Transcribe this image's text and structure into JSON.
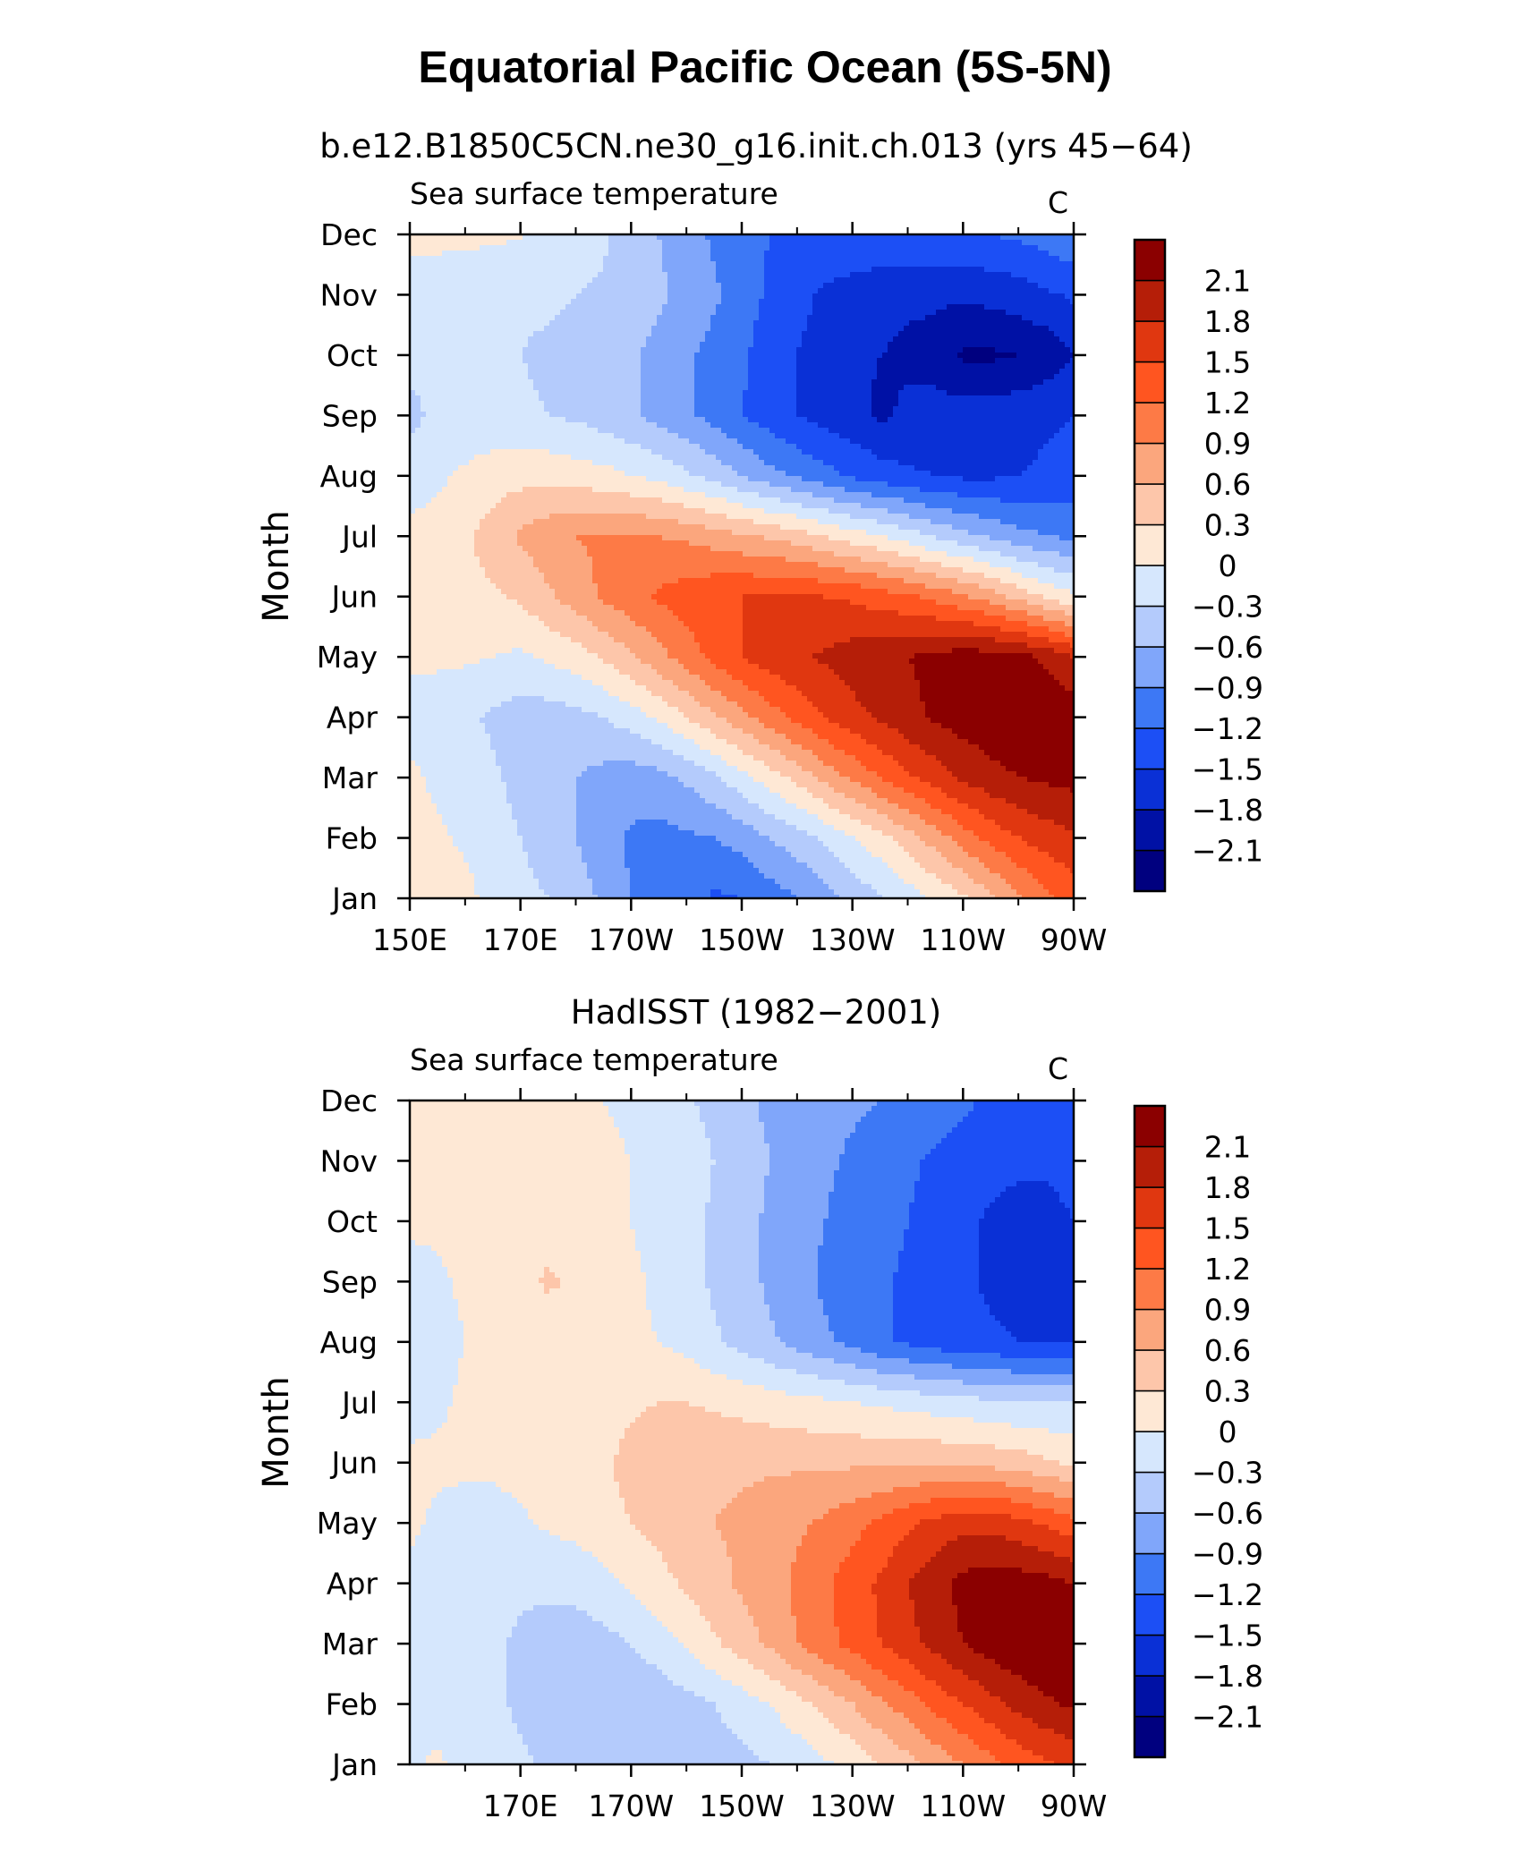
{
  "figure": {
    "title": "Equatorial Pacific Ocean (5S-5N)"
  },
  "colorbar": {
    "colors": [
      "#00007f",
      "#0011a5",
      "#0a30d6",
      "#1c4ff5",
      "#3d78f5",
      "#80a6fa",
      "#b4cbfc",
      "#d6e7fd",
      "#fee8d5",
      "#fdc6aa",
      "#fba67d",
      "#fd7a46",
      "#ff5520",
      "#e03710",
      "#b51e08",
      "#8b0000"
    ],
    "labels": [
      "-2.1",
      "-1.8",
      "-1.5",
      "-1.2",
      "-0.9",
      "-0.6",
      "-0.3",
      "0",
      "0.3",
      "0.6",
      "0.9",
      "1.2",
      "1.5",
      "1.8",
      "2.1"
    ],
    "label_text": [
      "−2.1",
      "−1.8",
      "−1.5",
      "−1.2",
      "−0.9",
      "−0.6",
      "−0.3",
      "0",
      "0.3",
      "0.6",
      "0.9",
      "1.2",
      "1.5",
      "1.8",
      "2.1"
    ]
  },
  "chart_data": [
    {
      "type": "heatmap",
      "panel": "top",
      "title": "b.e12.B1850C5CN.ne30_g16.init.ch.013 (yrs 45−64)",
      "left_string": "Sea surface temperature",
      "right_string": "C",
      "ylabel": "Month",
      "xlabel": "",
      "x_tick_labels": [
        "150E",
        "170E",
        "170W",
        "150W",
        "130W",
        "110W",
        "90W"
      ],
      "x_tick_lon": [
        150,
        170,
        190,
        210,
        230,
        250,
        270
      ],
      "xlim": [
        150,
        270
      ],
      "y_tick_labels": [
        "Jan",
        "Feb",
        "Mar",
        "Apr",
        "May",
        "Jun",
        "Jul",
        "Aug",
        "Sep",
        "Oct",
        "Nov",
        "Dec"
      ],
      "x": [
        150,
        155,
        160,
        165,
        170,
        175,
        180,
        185,
        190,
        195,
        200,
        205,
        210,
        215,
        220,
        225,
        230,
        235,
        240,
        245,
        250,
        255,
        260,
        265,
        270
      ],
      "y": [
        "Jan",
        "Feb",
        "Mar",
        "Apr",
        "May",
        "Jun",
        "Jul",
        "Aug",
        "Sep",
        "Oct",
        "Nov",
        "Dec"
      ],
      "values": [
        [
          0.15,
          0.12,
          0.1,
          -0.12,
          -0.2,
          -0.3,
          -0.45,
          -0.65,
          -0.9,
          -1.0,
          -1.05,
          -1.25,
          -1.2,
          -1.05,
          -0.9,
          -0.7,
          -0.5,
          -0.35,
          -0.15,
          0.05,
          0.25,
          0.55,
          0.85,
          1.1,
          1.35
        ],
        [
          0.1,
          0.05,
          -0.05,
          -0.15,
          -0.3,
          -0.45,
          -0.6,
          -0.8,
          -0.95,
          -1.0,
          -0.95,
          -0.9,
          -0.8,
          -0.6,
          -0.45,
          -0.25,
          0.0,
          0.2,
          0.45,
          0.75,
          1.05,
          1.3,
          1.5,
          1.65,
          1.75
        ],
        [
          0.05,
          -0.05,
          -0.15,
          -0.25,
          -0.4,
          -0.5,
          -0.6,
          -0.7,
          -0.75,
          -0.7,
          -0.55,
          -0.35,
          -0.1,
          0.15,
          0.4,
          0.7,
          0.95,
          1.2,
          1.45,
          1.65,
          1.85,
          2.0,
          2.1,
          2.15,
          2.2
        ],
        [
          -0.1,
          -0.15,
          -0.25,
          -0.35,
          -0.45,
          -0.45,
          -0.4,
          -0.3,
          -0.15,
          0.05,
          0.3,
          0.55,
          0.8,
          1.05,
          1.3,
          1.5,
          1.7,
          1.85,
          2.0,
          2.15,
          2.25,
          2.3,
          2.35,
          2.35,
          2.3
        ],
        [
          0.05,
          0.05,
          0.05,
          0.0,
          -0.05,
          0.05,
          0.15,
          0.35,
          0.55,
          0.8,
          1.05,
          1.3,
          1.5,
          1.65,
          1.75,
          1.85,
          1.95,
          2.0,
          2.1,
          2.2,
          2.25,
          2.25,
          2.2,
          2.05,
          1.8
        ],
        [
          0.1,
          0.15,
          0.2,
          0.25,
          0.35,
          0.55,
          0.75,
          0.95,
          1.1,
          1.25,
          1.35,
          1.45,
          1.5,
          1.55,
          1.55,
          1.5,
          1.45,
          1.35,
          1.25,
          1.1,
          0.95,
          0.75,
          0.5,
          0.25,
          0.05
        ],
        [
          0.05,
          0.1,
          0.25,
          0.45,
          0.65,
          0.8,
          0.9,
          0.95,
          0.95,
          0.9,
          0.85,
          0.75,
          0.65,
          0.55,
          0.45,
          0.3,
          0.15,
          0.0,
          -0.15,
          -0.35,
          -0.5,
          -0.65,
          -0.8,
          -0.9,
          -0.95
        ],
        [
          -0.1,
          -0.05,
          0.05,
          0.15,
          0.2,
          0.2,
          0.15,
          0.1,
          0.0,
          -0.1,
          -0.25,
          -0.4,
          -0.6,
          -0.8,
          -0.95,
          -1.1,
          -1.25,
          -1.35,
          -1.45,
          -1.5,
          -1.55,
          -1.55,
          -1.5,
          -1.45,
          -1.4
        ],
        [
          -0.4,
          -0.2,
          -0.2,
          -0.2,
          -0.25,
          -0.3,
          -0.35,
          -0.45,
          -0.55,
          -0.7,
          -0.85,
          -1.0,
          -1.2,
          -1.35,
          -1.5,
          -1.6,
          -1.7,
          -1.85,
          -1.75,
          -1.7,
          -1.65,
          -1.65,
          -1.6,
          -1.55,
          -1.5
        ],
        [
          -0.2,
          -0.2,
          -0.25,
          -0.3,
          -0.3,
          -0.35,
          -0.4,
          -0.45,
          -0.55,
          -0.7,
          -0.85,
          -1.0,
          -1.15,
          -1.35,
          -1.5,
          -1.65,
          -1.75,
          -1.8,
          -1.85,
          -1.9,
          -2.15,
          -2.15,
          -2.1,
          -2.0,
          -1.8
        ],
        [
          -0.1,
          -0.1,
          -0.15,
          -0.2,
          -0.25,
          -0.25,
          -0.3,
          -0.35,
          -0.45,
          -0.55,
          -0.7,
          -0.85,
          -1.05,
          -1.25,
          -1.4,
          -1.55,
          -1.6,
          -1.7,
          -1.75,
          -1.75,
          -1.75,
          -1.7,
          -1.65,
          -1.55,
          -1.45
        ],
        [
          0.05,
          0.05,
          0.05,
          0.05,
          0.02,
          -0.05,
          -0.1,
          -0.25,
          -0.45,
          -0.6,
          -0.75,
          -0.95,
          -1.1,
          -1.2,
          -1.25,
          -1.3,
          -1.3,
          -1.25,
          -1.2,
          -1.25,
          -1.25,
          -1.2,
          -1.15,
          -1.05,
          -0.95
        ]
      ]
    },
    {
      "type": "heatmap",
      "panel": "bottom",
      "title": "HadISST (1982−2001)",
      "left_string": "Sea surface temperature",
      "right_string": "C",
      "ylabel": "Month",
      "xlabel": "",
      "x_tick_labels": [
        "170E",
        "170W",
        "150W",
        "130W",
        "110W",
        "90W"
      ],
      "x_tick_lon": [
        170,
        190,
        210,
        230,
        250,
        270
      ],
      "xlim": [
        150,
        270
      ],
      "y_tick_labels": [
        "Jan",
        "Feb",
        "Mar",
        "Apr",
        "May",
        "Jun",
        "Jul",
        "Aug",
        "Sep",
        "Oct",
        "Nov",
        "Dec"
      ],
      "x": [
        150,
        155,
        160,
        165,
        170,
        175,
        180,
        185,
        190,
        195,
        200,
        205,
        210,
        215,
        220,
        225,
        230,
        235,
        240,
        245,
        250,
        255,
        260,
        265,
        270
      ],
      "y": [
        "Jan",
        "Feb",
        "Mar",
        "Apr",
        "May",
        "Jun",
        "Jul",
        "Aug",
        "Sep",
        "Oct",
        "Nov",
        "Dec"
      ],
      "values": [
        [
          -0.05,
          0.05,
          -0.1,
          -0.15,
          -0.25,
          -0.35,
          -0.4,
          -0.45,
          -0.5,
          -0.5,
          -0.5,
          -0.45,
          -0.4,
          -0.3,
          -0.2,
          -0.05,
          0.1,
          0.3,
          0.5,
          0.7,
          0.9,
          1.1,
          1.3,
          1.45,
          1.55
        ],
        [
          -0.1,
          -0.15,
          -0.2,
          -0.25,
          -0.35,
          -0.45,
          -0.5,
          -0.55,
          -0.55,
          -0.5,
          -0.4,
          -0.3,
          -0.15,
          0.0,
          0.2,
          0.4,
          0.6,
          0.85,
          1.05,
          1.3,
          1.5,
          1.7,
          1.9,
          2.05,
          2.15
        ],
        [
          -0.1,
          -0.15,
          -0.2,
          -0.25,
          -0.35,
          -0.4,
          -0.45,
          -0.4,
          -0.3,
          -0.15,
          0.05,
          0.25,
          0.45,
          0.65,
          0.9,
          1.1,
          1.3,
          1.5,
          1.7,
          1.9,
          2.1,
          2.25,
          2.35,
          2.4,
          2.35
        ],
        [
          -0.05,
          -0.1,
          -0.15,
          -0.2,
          -0.25,
          -0.25,
          -0.2,
          -0.1,
          0.05,
          0.2,
          0.35,
          0.5,
          0.65,
          0.8,
          0.95,
          1.15,
          1.35,
          1.55,
          1.8,
          2.0,
          2.2,
          2.25,
          2.25,
          2.2,
          2.1
        ],
        [
          0.05,
          -0.05,
          -0.1,
          -0.1,
          -0.05,
          0.05,
          0.1,
          0.2,
          0.3,
          0.4,
          0.5,
          0.6,
          0.65,
          0.75,
          0.85,
          0.95,
          1.1,
          1.25,
          1.45,
          1.6,
          1.7,
          1.7,
          1.6,
          1.45,
          1.3
        ],
        [
          0.05,
          0.05,
          0.05,
          0.05,
          0.1,
          0.15,
          0.2,
          0.25,
          0.4,
          0.5,
          0.55,
          0.55,
          0.55,
          0.55,
          0.55,
          0.55,
          0.55,
          0.55,
          0.55,
          0.55,
          0.55,
          0.5,
          0.45,
          0.35,
          0.25
        ],
        [
          -0.1,
          -0.05,
          0.05,
          0.1,
          0.1,
          0.1,
          0.1,
          0.15,
          0.25,
          0.3,
          0.3,
          0.25,
          0.2,
          0.15,
          0.1,
          0.05,
          0.0,
          -0.05,
          -0.1,
          -0.15,
          -0.2,
          -0.25,
          -0.3,
          -0.3,
          -0.3
        ],
        [
          -0.15,
          -0.1,
          0.0,
          0.05,
          0.05,
          0.1,
          0.1,
          0.05,
          0.05,
          0.0,
          -0.1,
          -0.25,
          -0.4,
          -0.55,
          -0.7,
          -0.85,
          -1.0,
          -1.15,
          -1.25,
          -1.35,
          -1.4,
          -1.45,
          -1.5,
          -1.5,
          -1.5
        ],
        [
          -0.1,
          -0.05,
          0.05,
          0.1,
          0.2,
          0.35,
          0.25,
          0.15,
          0.05,
          -0.05,
          -0.2,
          -0.35,
          -0.5,
          -0.65,
          -0.8,
          -0.95,
          -1.05,
          -1.15,
          -1.25,
          -1.35,
          -1.45,
          -1.55,
          -1.6,
          -1.6,
          -1.55
        ],
        [
          0.05,
          0.05,
          0.1,
          0.15,
          0.15,
          0.15,
          0.1,
          0.05,
          0.0,
          -0.1,
          -0.2,
          -0.35,
          -0.5,
          -0.65,
          -0.8,
          -0.9,
          -1.0,
          -1.1,
          -1.2,
          -1.3,
          -1.4,
          -1.55,
          -1.6,
          -1.6,
          -1.5
        ],
        [
          0.05,
          0.05,
          0.1,
          0.1,
          0.1,
          0.1,
          0.05,
          0.05,
          0.0,
          -0.05,
          -0.15,
          -0.3,
          -0.45,
          -0.6,
          -0.75,
          -0.85,
          -0.95,
          -1.05,
          -1.15,
          -1.25,
          -1.3,
          -1.4,
          -1.45,
          -1.45,
          -1.4
        ],
        [
          0.05,
          0.05,
          0.05,
          0.05,
          0.05,
          0.05,
          0.02,
          0.0,
          -0.05,
          -0.15,
          -0.25,
          -0.4,
          -0.55,
          -0.65,
          -0.75,
          -0.8,
          -0.85,
          -0.9,
          -0.95,
          -1.05,
          -1.15,
          -1.25,
          -1.3,
          -1.3,
          -1.25
        ]
      ]
    }
  ]
}
